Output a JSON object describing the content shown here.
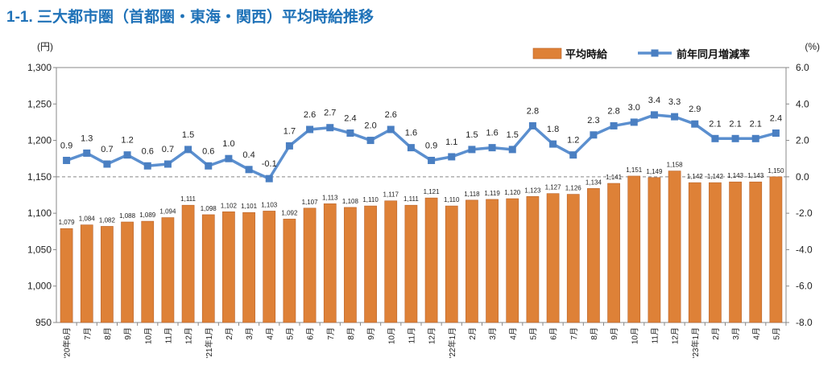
{
  "title": "1-1. 三大都市圏（首都圏・東海・関西）平均時給推移",
  "chart_data": {
    "type": "bar+line",
    "left_axis_unit": "(円)",
    "right_axis_unit": "(%)",
    "left_ylim": [
      950,
      1300
    ],
    "left_ticks": [
      "950",
      "1,000",
      "1,050",
      "1,100",
      "1,150",
      "1,200",
      "1,250",
      "1,300"
    ],
    "right_ylim": [
      -8,
      6
    ],
    "right_ticks": [
      "-8.0",
      "-6.0",
      "-4.0",
      "-2.0",
      "0.0",
      "2.0",
      "4.0",
      "6.0"
    ],
    "categories": [
      "'20年6月",
      "7月",
      "8月",
      "9月",
      "10月",
      "11月",
      "12月",
      "'21年1月",
      "2月",
      "3月",
      "4月",
      "5月",
      "6月",
      "7月",
      "8月",
      "9月",
      "10月",
      "11月",
      "12月",
      "'22年1月",
      "2月",
      "3月",
      "4月",
      "5月",
      "6月",
      "7月",
      "8月",
      "9月",
      "10月",
      "11月",
      "12月",
      "'23年1月",
      "2月",
      "3月",
      "4月",
      "5月"
    ],
    "series": [
      {
        "name": "平均時給",
        "type": "bar",
        "axis": "left",
        "color": "#de8137",
        "values": [
          1079,
          1084,
          1082,
          1088,
          1089,
          1094,
          1111,
          1098,
          1102,
          1101,
          1103,
          1092,
          1107,
          1113,
          1108,
          1110,
          1117,
          1111,
          1121,
          1110,
          1118,
          1119,
          1120,
          1123,
          1127,
          1126,
          1134,
          1141,
          1151,
          1149,
          1158,
          1142,
          1142,
          1143,
          1143,
          1150
        ],
        "labels": [
          "1,079",
          "1,084",
          "1,082",
          "1,088",
          "1,089",
          "1,094",
          "1,111",
          "1,098",
          "1,102",
          "1,101",
          "1,103",
          "1,092",
          "1,107",
          "1,113",
          "1,108",
          "1,110",
          "1,117",
          "1,111",
          "1,121",
          "1,110",
          "1,118",
          "1,119",
          "1,120",
          "1,123",
          "1,127",
          "1,126",
          "1,134",
          "1,141",
          "1,151",
          "1,149",
          "1,158",
          "1,142",
          "1,142",
          "1,143",
          "1,143",
          "1,150"
        ]
      },
      {
        "name": "前年同月増減率",
        "type": "line",
        "axis": "right",
        "color": "#5b8fcf",
        "values": [
          0.9,
          1.3,
          0.7,
          1.2,
          0.6,
          0.7,
          1.5,
          0.6,
          1.0,
          0.4,
          -0.1,
          1.7,
          2.6,
          2.7,
          2.4,
          2.0,
          2.6,
          1.6,
          0.9,
          1.1,
          1.5,
          1.6,
          1.5,
          2.8,
          1.8,
          1.2,
          2.3,
          2.8,
          3.0,
          3.4,
          3.3,
          2.9,
          2.1,
          2.1,
          2.1,
          2.4
        ],
        "labels": [
          "0.9",
          "1.3",
          "0.7",
          "1.2",
          "0.6",
          "0.7",
          "1.5",
          "0.6",
          "1.0",
          "0.4",
          "-0.1",
          "1.7",
          "2.6",
          "2.7",
          "2.4",
          "2.0",
          "2.6",
          "1.6",
          "0.9",
          "1.1",
          "1.5",
          "1.6",
          "1.5",
          "2.8",
          "1.8",
          "1.2",
          "2.3",
          "2.8",
          "3.0",
          "3.4",
          "3.3",
          "2.9",
          "2.1",
          "2.1",
          "2.1",
          "2.4"
        ]
      }
    ],
    "legend_position": "top-right",
    "zero_reference_line": "dashed"
  }
}
